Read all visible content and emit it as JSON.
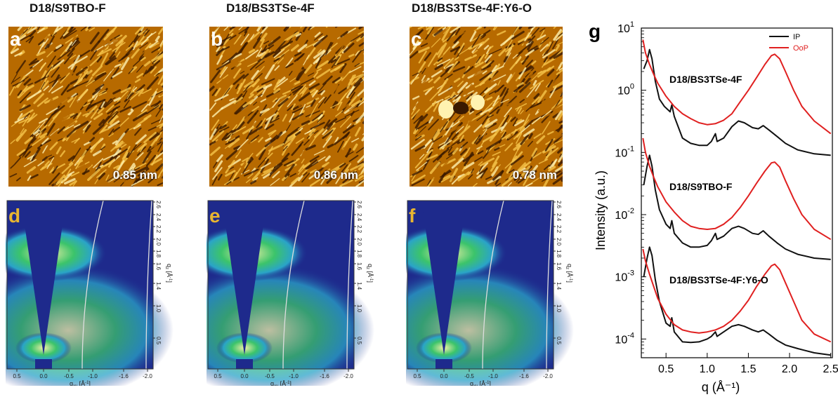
{
  "titles": [
    "D18/S9TBO-F",
    "D18/BS3TSe-4F",
    "D18/BS3TSe-4F:Y6-O"
  ],
  "afm": {
    "letters": [
      "a",
      "b",
      "c"
    ],
    "roughness": [
      "0.85 nm",
      "0.86 nm",
      "0.78 nm"
    ],
    "colors": {
      "dark": "#3a1a00",
      "mid": "#b76a00",
      "bright": "#f6c44a",
      "highlight": "#fff2b0"
    }
  },
  "giwaxs": {
    "letters": [
      "d",
      "e",
      "f"
    ],
    "x_ticks": [
      "0.5",
      "0.0",
      "-0.5",
      "-1.0",
      "-1.6",
      "-2.0"
    ],
    "y_ticks": [
      "2.6",
      "2.4",
      "2.2",
      "2.0",
      "1.8",
      "1.6",
      "1.4",
      "1.0",
      "0.5"
    ],
    "x_label": "q",
    "x_label_sub": "xy",
    "x_label_unit": " [Å",
    "x_label_unit_sup": "-1",
    "x_label_unit_end": "]",
    "y_label": "q",
    "y_label_sub": "z",
    "y_label_unit": " [Å",
    "y_label_unit_sup": "-1",
    "y_label_unit_end": "]",
    "colors": {
      "background": "#1e2a8c",
      "cyan": "#2aa4c8",
      "green": "#3cc46a",
      "yellow": "#f2f0a8",
      "letter": "#e8b530"
    }
  },
  "chart_data": {
    "panel_label": "g",
    "type": "line",
    "xlabel": "q (Å⁻¹)",
    "ylabel": "Intensity (a.u.)",
    "x_ticks": [
      "0.5",
      "1.0",
      "1.5",
      "2.0",
      "2.5"
    ],
    "xlim": [
      0.2,
      2.52
    ],
    "ylim": [
      5e-05,
      10
    ],
    "y_scale": "log",
    "y_ticks": [
      {
        "value": 10,
        "base": "10",
        "exp": "1"
      },
      {
        "value": 1,
        "base": "10",
        "exp": "0"
      },
      {
        "value": 0.1,
        "base": "10",
        "exp": "-1"
      },
      {
        "value": 0.01,
        "base": "10",
        "exp": "-2"
      },
      {
        "value": 0.001,
        "base": "10",
        "exp": "-3"
      },
      {
        "value": 0.0001,
        "base": "10",
        "exp": "-4"
      }
    ],
    "legend": [
      {
        "name": "IP",
        "color": "#111111"
      },
      {
        "name": "OoP",
        "color": "#e02020"
      }
    ],
    "legend_position": "top-right",
    "groups": [
      {
        "label": "D18/BS3TSe-4F",
        "series": [
          {
            "name": "IP",
            "color": "#111111",
            "points": [
              [
                0.23,
                2.2
              ],
              [
                0.27,
                3.0
              ],
              [
                0.3,
                4.5
              ],
              [
                0.33,
                3.2
              ],
              [
                0.37,
                1.4
              ],
              [
                0.42,
                0.72
              ],
              [
                0.48,
                0.55
              ],
              [
                0.55,
                0.45
              ],
              [
                0.57,
                0.58
              ],
              [
                0.6,
                0.38
              ],
              [
                0.7,
                0.17
              ],
              [
                0.8,
                0.14
              ],
              [
                0.9,
                0.13
              ],
              [
                1.0,
                0.13
              ],
              [
                1.05,
                0.15
              ],
              [
                1.1,
                0.2
              ],
              [
                1.12,
                0.15
              ],
              [
                1.2,
                0.17
              ],
              [
                1.3,
                0.26
              ],
              [
                1.38,
                0.32
              ],
              [
                1.45,
                0.3
              ],
              [
                1.55,
                0.25
              ],
              [
                1.62,
                0.24
              ],
              [
                1.68,
                0.27
              ],
              [
                1.75,
                0.23
              ],
              [
                1.85,
                0.18
              ],
              [
                1.95,
                0.14
              ],
              [
                2.1,
                0.11
              ],
              [
                2.3,
                0.095
              ],
              [
                2.5,
                0.09
              ]
            ]
          },
          {
            "name": "OoP",
            "color": "#e02020",
            "points": [
              [
                0.22,
                6.5
              ],
              [
                0.25,
                4.0
              ],
              [
                0.3,
                2.6
              ],
              [
                0.35,
                1.8
              ],
              [
                0.4,
                1.3
              ],
              [
                0.5,
                0.8
              ],
              [
                0.6,
                0.55
              ],
              [
                0.7,
                0.42
              ],
              [
                0.8,
                0.35
              ],
              [
                0.9,
                0.3
              ],
              [
                1.0,
                0.28
              ],
              [
                1.1,
                0.29
              ],
              [
                1.2,
                0.33
              ],
              [
                1.3,
                0.42
              ],
              [
                1.4,
                0.65
              ],
              [
                1.5,
                1.0
              ],
              [
                1.6,
                1.6
              ],
              [
                1.7,
                2.6
              ],
              [
                1.78,
                3.6
              ],
              [
                1.82,
                3.8
              ],
              [
                1.88,
                3.2
              ],
              [
                1.95,
                2.0
              ],
              [
                2.05,
                1.0
              ],
              [
                2.15,
                0.55
              ],
              [
                2.3,
                0.32
              ],
              [
                2.5,
                0.2
              ]
            ]
          }
        ]
      },
      {
        "label": "D18/S9TBO-F",
        "series": [
          {
            "name": "IP",
            "color": "#111111",
            "points": [
              [
                0.23,
                0.03
              ],
              [
                0.27,
                0.06
              ],
              [
                0.3,
                0.09
              ],
              [
                0.33,
                0.06
              ],
              [
                0.37,
                0.025
              ],
              [
                0.42,
                0.012
              ],
              [
                0.5,
                0.007
              ],
              [
                0.55,
                0.006
              ],
              [
                0.57,
                0.008
              ],
              [
                0.6,
                0.005
              ],
              [
                0.7,
                0.0035
              ],
              [
                0.8,
                0.003
              ],
              [
                0.9,
                0.003
              ],
              [
                1.0,
                0.0032
              ],
              [
                1.05,
                0.0038
              ],
              [
                1.1,
                0.005
              ],
              [
                1.12,
                0.004
              ],
              [
                1.2,
                0.0045
              ],
              [
                1.3,
                0.006
              ],
              [
                1.38,
                0.0065
              ],
              [
                1.45,
                0.006
              ],
              [
                1.55,
                0.005
              ],
              [
                1.62,
                0.0048
              ],
              [
                1.68,
                0.0055
              ],
              [
                1.75,
                0.0045
              ],
              [
                1.85,
                0.0035
              ],
              [
                1.95,
                0.0028
              ],
              [
                2.1,
                0.0023
              ],
              [
                2.3,
                0.002
              ],
              [
                2.5,
                0.0019
              ]
            ]
          },
          {
            "name": "OoP",
            "color": "#e02020",
            "points": [
              [
                0.22,
                0.17
              ],
              [
                0.25,
                0.1
              ],
              [
                0.3,
                0.06
              ],
              [
                0.35,
                0.04
              ],
              [
                0.4,
                0.028
              ],
              [
                0.5,
                0.016
              ],
              [
                0.6,
                0.011
              ],
              [
                0.7,
                0.008
              ],
              [
                0.8,
                0.0065
              ],
              [
                0.9,
                0.006
              ],
              [
                1.0,
                0.0058
              ],
              [
                1.1,
                0.006
              ],
              [
                1.2,
                0.007
              ],
              [
                1.3,
                0.009
              ],
              [
                1.4,
                0.013
              ],
              [
                1.5,
                0.02
              ],
              [
                1.6,
                0.032
              ],
              [
                1.7,
                0.05
              ],
              [
                1.78,
                0.068
              ],
              [
                1.82,
                0.07
              ],
              [
                1.88,
                0.058
              ],
              [
                1.95,
                0.035
              ],
              [
                2.05,
                0.018
              ],
              [
                2.15,
                0.01
              ],
              [
                2.3,
                0.0058
              ],
              [
                2.5,
                0.004
              ]
            ]
          }
        ]
      },
      {
        "label": "D18/BS3TSe-4F:Y6-O",
        "series": [
          {
            "name": "IP",
            "color": "#111111",
            "points": [
              [
                0.23,
                0.001
              ],
              [
                0.27,
                0.002
              ],
              [
                0.3,
                0.003
              ],
              [
                0.33,
                0.0022
              ],
              [
                0.37,
                0.0009
              ],
              [
                0.42,
                0.0004
              ],
              [
                0.5,
                0.00018
              ],
              [
                0.55,
                0.00016
              ],
              [
                0.57,
                0.00022
              ],
              [
                0.6,
                0.00013
              ],
              [
                0.7,
                9e-05
              ],
              [
                0.8,
                8.8e-05
              ],
              [
                0.9,
                9e-05
              ],
              [
                1.0,
                0.0001
              ],
              [
                1.05,
                0.00011
              ],
              [
                1.1,
                0.00013
              ],
              [
                1.12,
                0.00011
              ],
              [
                1.2,
                0.00013
              ],
              [
                1.3,
                0.00016
              ],
              [
                1.38,
                0.00017
              ],
              [
                1.45,
                0.00016
              ],
              [
                1.55,
                0.00014
              ],
              [
                1.62,
                0.00013
              ],
              [
                1.68,
                0.00014
              ],
              [
                1.75,
                0.00012
              ],
              [
                1.85,
                9.5e-05
              ],
              [
                1.95,
                8e-05
              ],
              [
                2.1,
                7e-05
              ],
              [
                2.3,
                6e-05
              ],
              [
                2.5,
                5.5e-05
              ]
            ]
          },
          {
            "name": "OoP",
            "color": "#e02020",
            "points": [
              [
                0.22,
                0.0028
              ],
              [
                0.25,
                0.0018
              ],
              [
                0.3,
                0.0011
              ],
              [
                0.35,
                0.0007
              ],
              [
                0.4,
                0.00045
              ],
              [
                0.5,
                0.00025
              ],
              [
                0.6,
                0.00017
              ],
              [
                0.7,
                0.00014
              ],
              [
                0.8,
                0.00013
              ],
              [
                0.9,
                0.000125
              ],
              [
                1.0,
                0.00013
              ],
              [
                1.1,
                0.00014
              ],
              [
                1.2,
                0.00016
              ],
              [
                1.3,
                0.0002
              ],
              [
                1.4,
                0.00028
              ],
              [
                1.5,
                0.00042
              ],
              [
                1.6,
                0.0007
              ],
              [
                1.7,
                0.0011
              ],
              [
                1.78,
                0.0015
              ],
              [
                1.82,
                0.0016
              ],
              [
                1.88,
                0.0013
              ],
              [
                1.95,
                0.0008
              ],
              [
                2.05,
                0.0004
              ],
              [
                2.15,
                0.0002
              ],
              [
                2.3,
                0.00012
              ],
              [
                2.5,
                9e-05
              ]
            ]
          }
        ]
      }
    ]
  }
}
